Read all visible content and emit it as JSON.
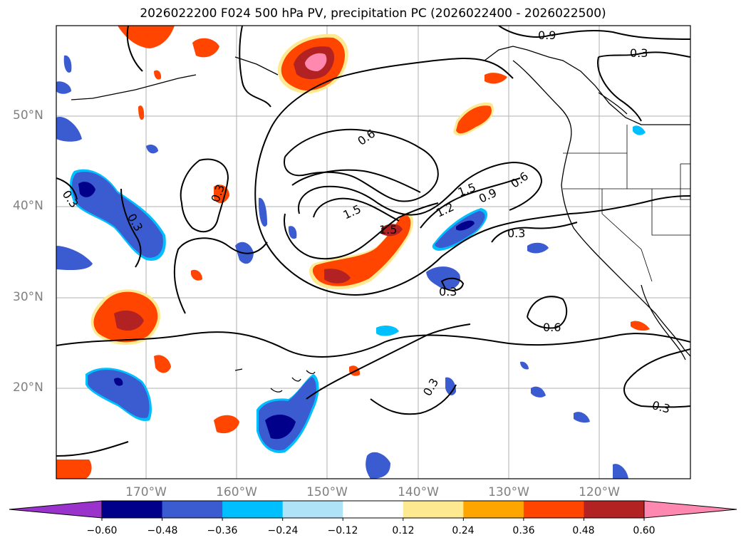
{
  "title": "2026022200 F024 500 hPa PV, precipitation PC (2026022400 - 2026022500)",
  "lat_labels": [
    "50°N",
    "40°N",
    "30°N",
    "20°N"
  ],
  "lon_labels": [
    "170°W",
    "160°W",
    "150°W",
    "140°W",
    "130°W",
    "120°W"
  ],
  "colorbar": {
    "ticks": [
      "−0.60",
      "−0.48",
      "−0.36",
      "−0.24",
      "−0.12",
      "0.12",
      "0.24",
      "0.36",
      "0.48",
      "0.60"
    ],
    "colors": [
      "#9933cc",
      "#00008b",
      "#3b5bd1",
      "#00bfff",
      "#aee3f8",
      "#ffffff",
      "#fde98f",
      "#ffa500",
      "#ff4500",
      "#b22222",
      "#ff88b0"
    ]
  },
  "contour_labels": [
    "0.9",
    "0.3",
    "0.6",
    "0.3",
    "0.3",
    "1.5",
    "1.5",
    "1.5",
    "1.2",
    "0.9",
    "0.6",
    "0.3",
    "0.3",
    "0.6",
    "0.3",
    "0.3",
    "0.3"
  ]
}
